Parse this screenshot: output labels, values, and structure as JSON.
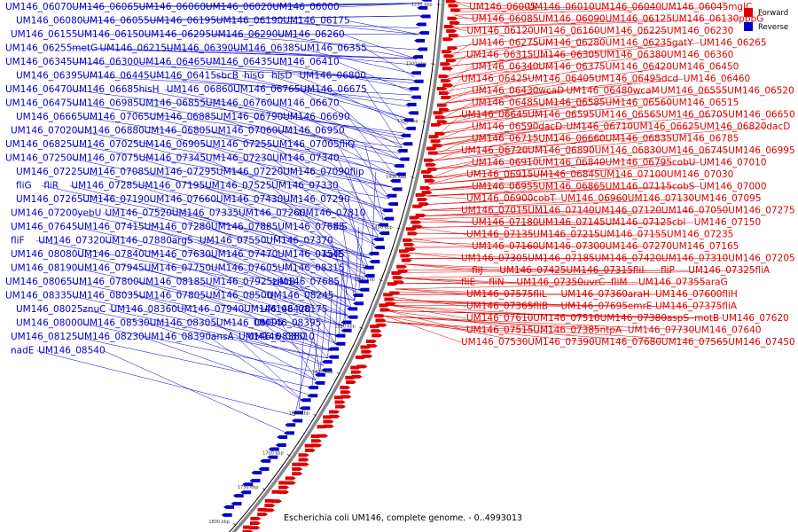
{
  "colors": {
    "forward": "#dd0000",
    "reverse": "#0000cc",
    "backbone": "#888888"
  },
  "legend": {
    "forward": "Forward",
    "reverse": "Reverse"
  },
  "caption": "Escherichia coli UM146, complete genome. - 0..4993013",
  "ticks": [
    {
      "label": "1250 kbp",
      "at": 0.01
    },
    {
      "label": "1300 kbp",
      "at": 0.105
    },
    {
      "label": "1350 kbp",
      "at": 0.2
    },
    {
      "label": "1400 kbp",
      "at": 0.295
    },
    {
      "label": "1450 kbp",
      "at": 0.385
    },
    {
      "label": "1500 kbp",
      "at": 0.48
    },
    {
      "label": "1550 kbp",
      "at": 0.57
    },
    {
      "label": "1600 kbp",
      "at": 0.66
    },
    {
      "label": "1650 kbp",
      "at": 0.745
    },
    {
      "label": "1700 kbp",
      "at": 0.83
    },
    {
      "label": "1750 kbp",
      "at": 0.905
    },
    {
      "label": "1800 kbp",
      "at": 0.985
    }
  ],
  "reverse_labels": [
    [
      "UM146_06070",
      0.01
    ],
    [
      "UM146_06065",
      0.01
    ],
    [
      "UM146_06060",
      0.01
    ],
    [
      "UM146_06020",
      0.01
    ],
    [
      "UM146_06000",
      0.01
    ],
    [
      "UM146_06080",
      0.03
    ],
    [
      "UM146_06055",
      0.03
    ],
    [
      "UM146_06195",
      0.05
    ],
    [
      "UM146_06190",
      0.06
    ],
    [
      "UM146_06175",
      0.06
    ],
    [
      "UM146_06155",
      0.06
    ],
    [
      "UM146_06150",
      0.06
    ],
    [
      "UM146_06295",
      0.085
    ],
    [
      "UM146_06290",
      0.1
    ],
    [
      "UM146_06260",
      0.1
    ],
    [
      "UM146_06255",
      0.1
    ],
    [
      "metG",
      0.1
    ],
    [
      "UM146_06215",
      0.1
    ],
    [
      "UM146_06390",
      0.11
    ],
    [
      "UM146_06385",
      0.125
    ],
    [
      "UM146_06355",
      0.13
    ],
    [
      "UM146_06345",
      0.135
    ],
    [
      "UM146_06300",
      0.135
    ],
    [
      "UM146_06465",
      0.14
    ],
    [
      "UM146_06435",
      0.15
    ],
    [
      "UM146_06410",
      0.155
    ],
    [
      "UM146_06395",
      0.16
    ],
    [
      "UM146_06445",
      0.17
    ],
    [
      "UM146_06415",
      0.18
    ],
    [
      "sbcB",
      0.2
    ],
    [
      "hisG",
      0.2
    ],
    [
      "hisD",
      0.21
    ],
    [
      "UM146_06800",
      0.22
    ],
    [
      "UM146_06470",
      0.225
    ],
    [
      "UM146_06685",
      0.23
    ],
    [
      "hisH",
      0.235
    ],
    [
      "UM146_06860",
      0.245
    ],
    [
      "UM146_06765",
      0.25
    ],
    [
      "UM146_06675",
      0.25
    ],
    [
      "UM146_06475",
      0.25
    ],
    [
      "UM146_06985",
      0.26
    ],
    [
      "UM146_06855",
      0.27
    ],
    [
      "UM146_06760",
      0.27
    ],
    [
      "UM146_06670",
      0.27
    ],
    [
      "UM146_06665",
      0.28
    ],
    [
      "UM146_07065",
      0.295
    ],
    [
      "UM146_06885",
      0.3
    ],
    [
      "UM146_06790",
      0.3
    ],
    [
      "UM146_06690",
      0.3
    ],
    [
      "UM146_07020",
      0.32
    ],
    [
      "UM146_06880",
      0.32
    ],
    [
      "UM146_06805",
      0.32
    ],
    [
      "UM146_07060",
      0.34
    ],
    [
      "UM146_06950",
      0.34
    ],
    [
      "UM146_06825",
      0.34
    ],
    [
      "UM146_07025",
      0.36
    ],
    [
      "UM146_06905",
      0.36
    ],
    [
      "UM146_07255",
      0.37
    ],
    [
      "UM146_07005",
      0.38
    ],
    [
      "fliQ",
      0.38
    ],
    [
      "UM146_07250",
      0.385
    ],
    [
      "UM146_07075",
      0.39
    ],
    [
      "UM146_07345",
      0.4
    ],
    [
      "UM146_07230",
      0.4
    ],
    [
      "UM146_07340",
      0.41
    ],
    [
      "UM146_07225",
      0.41
    ],
    [
      "UM146_07085",
      0.41
    ],
    [
      "UM146_07295",
      0.425
    ],
    [
      "UM146_07220",
      0.425
    ],
    [
      "UM146_07090",
      0.43
    ],
    [
      "flip",
      0.445
    ],
    [
      "fliG",
      0.445
    ],
    [
      "fliR",
      0.45
    ],
    [
      "UM146_07285",
      0.45
    ],
    [
      "UM146_07195",
      0.45
    ],
    [
      "UM146_07525",
      0.465
    ],
    [
      "UM146_07330",
      0.465
    ],
    [
      "UM146_07265",
      0.465
    ],
    [
      "UM146_07190",
      0.47
    ],
    [
      "UM146_07660",
      0.48
    ],
    [
      "UM146_07430",
      0.48
    ],
    [
      "UM146_07290",
      0.48
    ],
    [
      "UM146_07200",
      0.485
    ],
    [
      "yebU",
      0.49
    ],
    [
      "UM146_07520",
      0.495
    ],
    [
      "UM146_07335",
      0.495
    ],
    [
      "UM146_07260",
      0.495
    ],
    [
      "UM146_07810",
      0.51
    ],
    [
      "UM146_07645",
      0.51
    ],
    [
      "UM146_07415",
      0.51
    ],
    [
      "UM146_07280",
      0.515
    ],
    [
      "UM146_07885",
      0.53
    ],
    [
      "UM146_07635",
      0.53
    ],
    [
      "fliS",
      0.53
    ],
    [
      "fliF",
      0.53
    ],
    [
      "UM146_07320",
      0.53
    ],
    [
      "UM146_07880",
      0.545
    ],
    [
      "argS",
      0.545
    ],
    [
      "UM146_07550",
      0.545
    ],
    [
      "UM146_07370",
      0.545
    ],
    [
      "UM146_08080",
      0.56
    ],
    [
      "UM146_07840",
      0.56
    ],
    [
      "UM146_07630",
      0.56
    ],
    [
      "UM146_07470",
      0.56
    ],
    [
      "UM146_07545",
      0.57
    ],
    [
      "katE",
      0.58
    ],
    [
      "UM146_08190",
      0.58
    ],
    [
      "UM146_07945",
      0.58
    ],
    [
      "UM146_07750",
      0.58
    ],
    [
      "UM146_07605",
      0.585
    ],
    [
      "UM146_08315",
      0.6
    ],
    [
      "UM146_08065",
      0.6
    ],
    [
      "UM146_07800",
      0.6
    ],
    [
      "UM146_08185",
      0.615
    ],
    [
      "UM146_07925",
      0.615
    ],
    [
      "znuB",
      0.615
    ],
    [
      "UM146_07685",
      0.615
    ],
    [
      "UM146_08335",
      0.63
    ],
    [
      "UM146_08035",
      0.63
    ],
    [
      "UM146_07805",
      0.63
    ],
    [
      "UM146_08500",
      0.645
    ],
    [
      "UM146_08245",
      0.645
    ],
    [
      "UM146_08025",
      0.645
    ],
    [
      "znuC",
      0.645
    ],
    [
      "UM146_08360",
      0.66
    ],
    [
      "UM146_07940",
      0.66
    ],
    [
      "UM146_08420",
      0.675
    ],
    [
      "UM146_08175",
      0.675
    ],
    [
      "UM146_08000",
      0.675
    ],
    [
      "UM146_08530",
      0.69
    ],
    [
      "UM146_08305",
      0.69
    ],
    [
      "UM146_08095",
      0.69
    ],
    [
      "UM146_08395",
      0.705
    ],
    [
      "UM146_08125",
      0.705
    ],
    [
      "UM146_08230",
      0.72
    ],
    [
      "UM146_08390",
      0.735
    ],
    [
      "ansA",
      0.735
    ],
    [
      "UM146_08380",
      0.75
    ],
    [
      "UM146_08510",
      0.765
    ],
    [
      "nadE",
      0.765
    ],
    [
      "UM146_08540",
      0.8
    ]
  ],
  "forward_labels": [
    [
      "UM146_06005",
      0.005
    ],
    [
      "UM146_06010",
      0.005
    ],
    [
      "UM146_06040",
      0.015
    ],
    [
      "UM146_06045",
      0.02
    ],
    [
      "mglC",
      0.025
    ],
    [
      "UM146_06085",
      0.025
    ],
    [
      "UM146_06090",
      0.03
    ],
    [
      "UM146_06125",
      0.04
    ],
    [
      "UM146_06130",
      0.045
    ],
    [
      "pbpG",
      0.045
    ],
    [
      "UM146_06120",
      0.045
    ],
    [
      "UM146_06160",
      0.06
    ],
    [
      "UM146_06225",
      0.075
    ],
    [
      "UM146_06230",
      0.085
    ],
    [
      "UM146_06275",
      0.09
    ],
    [
      "UM146_06280",
      0.095
    ],
    [
      "UM146_06235",
      0.095
    ],
    [
      "gatY",
      0.105
    ],
    [
      "UM146_06265",
      0.105
    ],
    [
      "UM146_06315",
      0.115
    ],
    [
      "UM146_06305",
      0.12
    ],
    [
      "UM146_06380",
      0.125
    ],
    [
      "UM146_06360",
      0.125
    ],
    [
      "UM146_06340",
      0.13
    ],
    [
      "UM146_06375",
      0.14
    ],
    [
      "UM146_06420",
      0.145
    ],
    [
      "UM146_06450",
      0.155
    ],
    [
      "UM146_06425",
      0.155
    ],
    [
      "UM146_06405",
      0.155
    ],
    [
      "UM146_06495",
      0.165
    ],
    [
      "dcd",
      0.165
    ],
    [
      "UM146_06460",
      0.165
    ],
    [
      "UM146_06430",
      0.165
    ],
    [
      "wcaD",
      0.18
    ],
    [
      "UM146_06480",
      0.18
    ],
    [
      "wcaM",
      0.19
    ],
    [
      "UM146_06555",
      0.19
    ],
    [
      "UM146_06520",
      0.19
    ],
    [
      "UM146_06485",
      0.19
    ],
    [
      "UM146_06585",
      0.2
    ],
    [
      "UM146_06560",
      0.2
    ],
    [
      "UM146_06515",
      0.2
    ],
    [
      "UM146_06645",
      0.215
    ],
    [
      "UM146_06595",
      0.215
    ],
    [
      "UM146_06565",
      0.215
    ],
    [
      "UM146_06705",
      0.225
    ],
    [
      "UM146_06650",
      0.225
    ],
    [
      "UM146_06590",
      0.225
    ],
    [
      "dacD",
      0.235
    ],
    [
      "UM146_06710",
      0.235
    ],
    [
      "UM146_06625",
      0.235
    ],
    [
      "UM146_06820",
      0.245
    ],
    [
      "dacD",
      0.25
    ],
    [
      "UM146_06715",
      0.25
    ],
    [
      "UM146_06660",
      0.25
    ],
    [
      "UM146_06835",
      0.26
    ],
    [
      "UM146_06785",
      0.26
    ],
    [
      "UM146_06720",
      0.26
    ],
    [
      "UM146_06890",
      0.275
    ],
    [
      "UM146_06830",
      0.275
    ],
    [
      "UM146_06745",
      0.275
    ],
    [
      "UM146_06995",
      0.29
    ],
    [
      "UM146_06910",
      0.29
    ],
    [
      "UM146_06840",
      0.29
    ],
    [
      "UM146_06795",
      0.29
    ],
    [
      "cobU",
      0.3
    ],
    [
      "UM146_07010",
      0.3
    ],
    [
      "UM146_06915",
      0.3
    ],
    [
      "UM146_06845",
      0.3
    ],
    [
      "UM146_07100",
      0.31
    ],
    [
      "UM146_07030",
      0.31
    ],
    [
      "UM146_06955",
      0.31
    ],
    [
      "UM146_06865",
      0.31
    ],
    [
      "UM146_07115",
      0.32
    ],
    [
      "cobS",
      0.32
    ],
    [
      "UM146_07000",
      0.32
    ],
    [
      "UM146_06900",
      0.32
    ],
    [
      "cobT",
      0.335
    ],
    [
      "UM146_06960",
      0.335
    ],
    [
      "UM146_07130",
      0.345
    ],
    [
      "UM146_07095",
      0.345
    ],
    [
      "UM146_07015",
      0.345
    ],
    [
      "UM146_07140",
      0.355
    ],
    [
      "UM146_07120",
      0.355
    ],
    [
      "UM146_07050",
      0.355
    ],
    [
      "UM146_07275",
      0.36
    ],
    [
      "UM146_07180",
      0.36
    ],
    [
      "UM146_07145",
      0.365
    ],
    [
      "UM146_07125",
      0.365
    ],
    [
      "cbl",
      0.375
    ],
    [
      "UM146_07150",
      0.375
    ],
    [
      "UM146_07135",
      0.375
    ],
    [
      "UM146_07215",
      0.385
    ],
    [
      "UM146_07155",
      0.385
    ],
    [
      "UM146_07235",
      0.395
    ],
    [
      "UM146_07160",
      0.395
    ],
    [
      "UM146_07300",
      0.4
    ],
    [
      "UM146_07270",
      0.41
    ],
    [
      "UM146_07165",
      0.41
    ],
    [
      "UM146_07305",
      0.42
    ],
    [
      "UM146_07185",
      0.42
    ],
    [
      "UM146_07420",
      0.43
    ],
    [
      "UM146_07310",
      0.43
    ],
    [
      "UM146_07205",
      0.43
    ],
    [
      "fliJ",
      0.44
    ],
    [
      "UM146_07425",
      0.44
    ],
    [
      "UM146_07315",
      0.44
    ],
    [
      "fliI",
      0.45
    ],
    [
      "fliP",
      0.45
    ],
    [
      "UM146_07325",
      0.455
    ],
    [
      "fliA",
      0.465
    ],
    [
      "fliE",
      0.465
    ],
    [
      "fliN",
      0.465
    ],
    [
      "UM146_07350",
      0.465
    ],
    [
      "uvrC",
      0.475
    ],
    [
      "fliM",
      0.475
    ],
    [
      "UM146_07355",
      0.475
    ],
    [
      "araG",
      0.485
    ],
    [
      "UM146_07575",
      0.485
    ],
    [
      "fliL",
      0.485
    ],
    [
      "UM146_07360",
      0.49
    ],
    [
      "araH",
      0.495
    ],
    [
      "UM146_07600",
      0.495
    ],
    [
      "fliH",
      0.495
    ],
    [
      "UM146_07365",
      0.5
    ],
    [
      "fliB",
      0.505
    ],
    [
      "UM146_07695",
      0.505
    ],
    [
      "emrE",
      0.505
    ],
    [
      "UM146_07375",
      0.51
    ],
    [
      "fliA",
      0.515
    ],
    [
      "UM146_07610",
      0.515
    ],
    [
      "UM146_07510",
      0.515
    ],
    [
      "UM146_07380",
      0.515
    ],
    [
      "aspS",
      0.525
    ],
    [
      "motB",
      0.525
    ],
    [
      "UM146_07620",
      0.525
    ],
    [
      "UM146_07515",
      0.525
    ],
    [
      "UM146_07385",
      0.525
    ],
    [
      "ntpA",
      0.535
    ],
    [
      "UM146_07730",
      0.535
    ],
    [
      "UM146_07640",
      0.535
    ],
    [
      "UM146_07530",
      0.535
    ],
    [
      "UM146_07390",
      0.535
    ],
    [
      "UM146_07680",
      0.545
    ],
    [
      "UM146_07565",
      0.545
    ],
    [
      "UM146_07450",
      0.545
    ]
  ]
}
